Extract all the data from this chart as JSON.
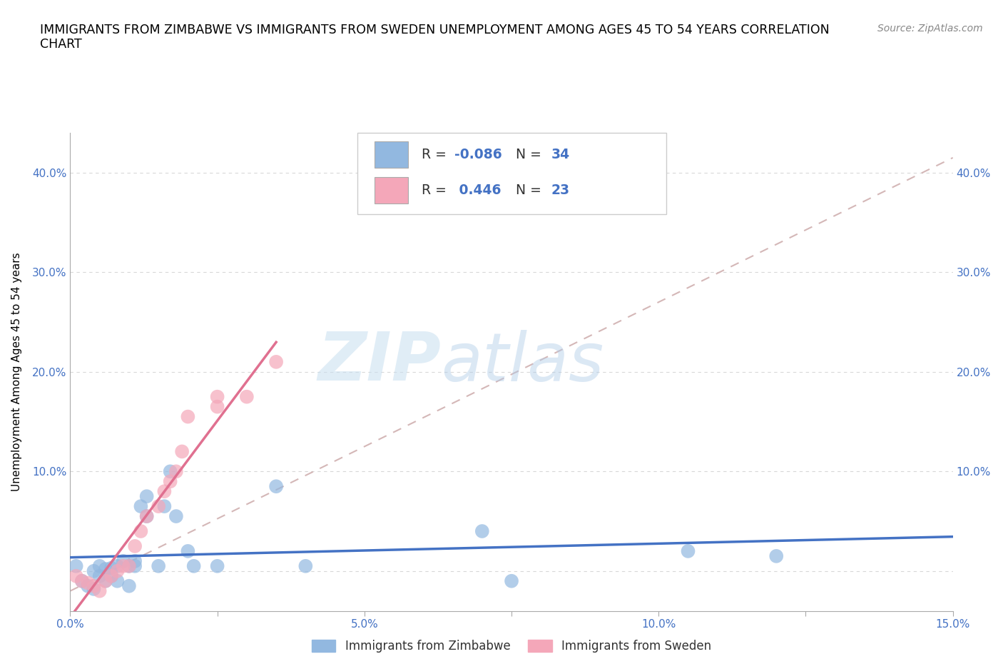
{
  "title": "IMMIGRANTS FROM ZIMBABWE VS IMMIGRANTS FROM SWEDEN UNEMPLOYMENT AMONG AGES 45 TO 54 YEARS CORRELATION\nCHART",
  "source": "Source: ZipAtlas.com",
  "ylabel": "Unemployment Among Ages 45 to 54 years",
  "xlim": [
    0.0,
    0.15
  ],
  "ylim": [
    -0.04,
    0.44
  ],
  "xticks": [
    0.0,
    0.025,
    0.05,
    0.075,
    0.1,
    0.125,
    0.15
  ],
  "xtick_labels": [
    "0.0%",
    "",
    "5.0%",
    "",
    "10.0%",
    "",
    "15.0%"
  ],
  "yticks": [
    0.0,
    0.1,
    0.2,
    0.3,
    0.4
  ],
  "ytick_labels": [
    "",
    "10.0%",
    "20.0%",
    "30.0%",
    "40.0%"
  ],
  "R_zimbabwe": -0.086,
  "N_zimbabwe": 34,
  "R_sweden": 0.446,
  "N_sweden": 23,
  "color_zimbabwe": "#92b8e0",
  "color_sweden": "#f4a7b9",
  "trendline_zimbabwe": "#4472c4",
  "trendline_sweden": "#e07090",
  "diagonal_color": "#d0b0b0",
  "watermark_zip": "ZIP",
  "watermark_atlas": "atlas",
  "zimbabwe_x": [
    0.001,
    0.002,
    0.003,
    0.004,
    0.004,
    0.005,
    0.005,
    0.006,
    0.006,
    0.007,
    0.007,
    0.008,
    0.008,
    0.009,
    0.01,
    0.01,
    0.011,
    0.011,
    0.012,
    0.013,
    0.013,
    0.015,
    0.016,
    0.017,
    0.018,
    0.02,
    0.021,
    0.025,
    0.035,
    0.04,
    0.07,
    0.075,
    0.105,
    0.12
  ],
  "zimbabwe_y": [
    0.005,
    -0.01,
    -0.015,
    -0.018,
    0.0,
    -0.005,
    0.005,
    -0.01,
    0.002,
    -0.005,
    0.003,
    -0.01,
    0.005,
    0.01,
    -0.015,
    0.005,
    0.005,
    0.01,
    0.065,
    0.075,
    0.055,
    0.005,
    0.065,
    0.1,
    0.055,
    0.02,
    0.005,
    0.005,
    0.085,
    0.005,
    0.04,
    -0.01,
    0.02,
    0.015
  ],
  "sweden_x": [
    0.001,
    0.002,
    0.003,
    0.004,
    0.005,
    0.006,
    0.007,
    0.008,
    0.009,
    0.01,
    0.011,
    0.012,
    0.013,
    0.015,
    0.016,
    0.017,
    0.018,
    0.019,
    0.02,
    0.025,
    0.025,
    0.03,
    0.035
  ],
  "sweden_y": [
    -0.005,
    -0.01,
    -0.012,
    -0.015,
    -0.02,
    -0.01,
    -0.005,
    0.0,
    0.005,
    0.005,
    0.025,
    0.04,
    0.055,
    0.065,
    0.08,
    0.09,
    0.1,
    0.12,
    0.155,
    0.165,
    0.175,
    0.175,
    0.21
  ]
}
